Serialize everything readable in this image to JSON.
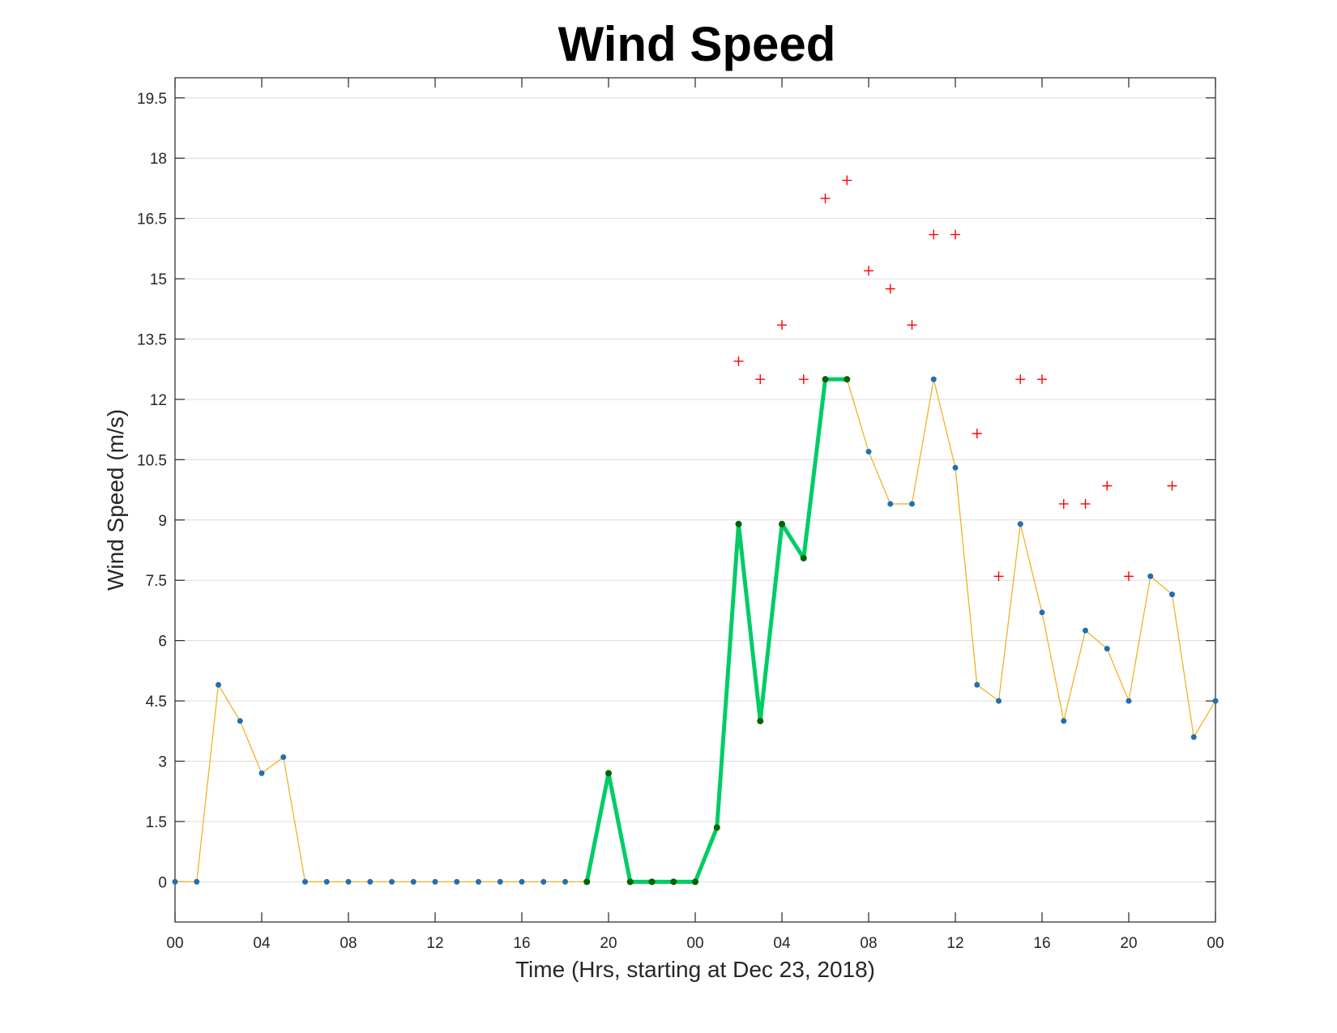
{
  "chart_data": {
    "type": "line",
    "title": "Wind Speed",
    "xlabel": "Time (Hrs, starting at Dec 23, 2018)",
    "ylabel": "Wind Speed (m/s)",
    "xlim": [
      0,
      48
    ],
    "ylim": [
      -1,
      20
    ],
    "grid": "horizontal",
    "x_ticks": [
      0,
      4,
      8,
      12,
      16,
      20,
      24,
      28,
      32,
      36,
      40,
      44,
      48
    ],
    "x_tick_labels": [
      "00",
      "04",
      "08",
      "12",
      "16",
      "20",
      "00",
      "04",
      "08",
      "12",
      "16",
      "20",
      "00"
    ],
    "y_ticks": [
      0,
      1.5,
      3,
      4.5,
      6,
      7.5,
      9,
      10.5,
      12,
      13.5,
      15,
      16.5,
      18,
      19.5
    ],
    "y_tick_labels": [
      "0",
      "1.5",
      "3",
      "4.5",
      "6",
      "7.5",
      "9",
      "10.5",
      "12",
      "13.5",
      "15",
      "16.5",
      "18",
      "19.5"
    ],
    "colors": {
      "wind": "#f0b323",
      "wind_marker": "#1f6fb5",
      "highlight": "#00cc66",
      "highlight_marker": "#006400",
      "gust": "#ff0000"
    },
    "series": [
      {
        "role": "wind",
        "x": [
          0,
          1,
          2,
          3,
          4,
          5,
          6,
          7,
          8,
          9,
          10,
          11,
          12,
          13,
          14,
          15,
          16,
          17,
          18,
          19,
          20,
          21,
          22,
          23,
          24,
          25,
          26,
          27,
          28,
          29,
          30,
          31,
          32,
          33,
          34,
          35,
          36,
          37,
          38,
          39,
          40,
          41,
          42,
          43,
          44,
          45,
          46,
          47,
          48
        ],
        "values": [
          0,
          0,
          4.9,
          4.0,
          2.7,
          3.1,
          0,
          0,
          0,
          0,
          0,
          0,
          0,
          0,
          0,
          0,
          0,
          0,
          0,
          0,
          2.7,
          0,
          0,
          0,
          0,
          1.35,
          8.9,
          4.0,
          8.9,
          8.05,
          12.5,
          12.5,
          10.7,
          9.4,
          9.4,
          12.5,
          10.3,
          4.9,
          4.5,
          8.9,
          6.7,
          4.0,
          6.25,
          5.8,
          4.5,
          7.6,
          7.15,
          3.6,
          4.5
        ]
      },
      {
        "role": "highlight",
        "x": [
          19,
          20,
          21,
          22,
          23,
          24,
          25,
          26,
          27,
          28,
          29,
          30,
          31
        ],
        "values": [
          0,
          2.7,
          0,
          0,
          0,
          0,
          1.35,
          8.9,
          4.0,
          8.9,
          8.05,
          12.5,
          12.5
        ]
      },
      {
        "role": "gust",
        "x": [
          26,
          27,
          28,
          29,
          30,
          31,
          32,
          33,
          34,
          35,
          36,
          37,
          38,
          39,
          40,
          41,
          42,
          43,
          44,
          46
        ],
        "values": [
          12.95,
          12.5,
          13.85,
          12.5,
          17.0,
          17.45,
          15.2,
          14.75,
          13.85,
          16.1,
          16.1,
          11.15,
          7.6,
          12.5,
          12.5,
          9.4,
          9.4,
          9.85,
          7.6,
          9.85
        ]
      }
    ]
  }
}
